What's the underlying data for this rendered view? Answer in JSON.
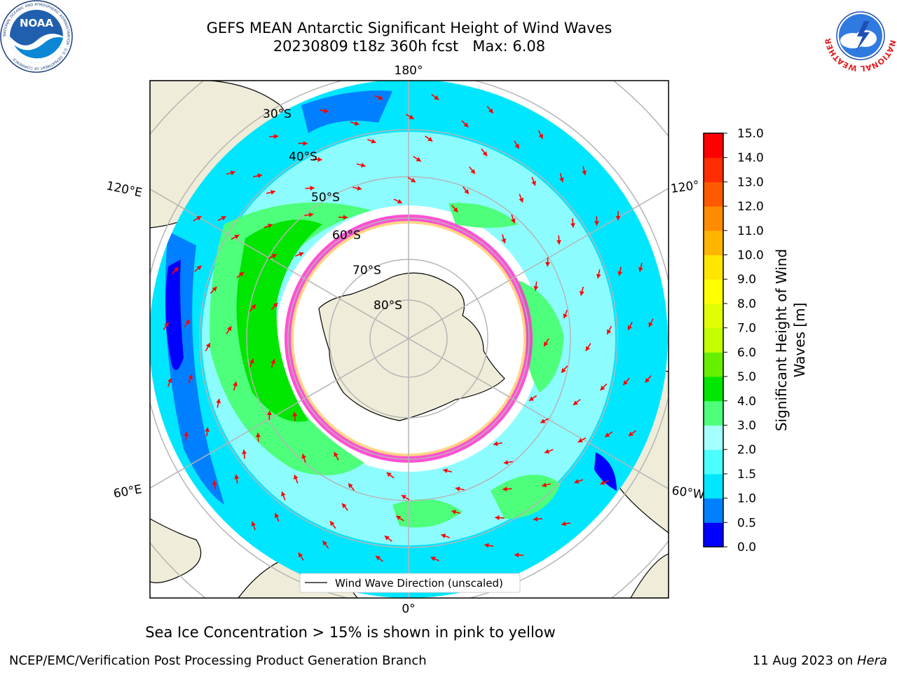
{
  "title": {
    "line1": "GEFS MEAN Antarctic Significant Height of Wind Waves",
    "line2": "20230809 t18z 360h fcst   Max: 6.08"
  },
  "logos": {
    "left": {
      "name": "noaa-logo",
      "text": "NOAA",
      "ring_text": "NATIONAL OCEANIC AND ATMOSPHERIC ADMINISTRATION · U.S. DEPARTMENT OF COMMERCE"
    },
    "right": {
      "name": "nws-logo",
      "ring_text": "NATIONAL WEATHER SERVICE"
    }
  },
  "map": {
    "projection": "south polar stereographic",
    "meridian_labels": {
      "top": "180°",
      "bottom": "0°",
      "upper_left": "120°E",
      "upper_right": "120°",
      "lower_left": "60°E",
      "lower_right": "60°W"
    },
    "latitude_labels": [
      "30°S",
      "40°S",
      "50°S",
      "60°S",
      "70°S",
      "80°S"
    ],
    "legend": "Wind Wave Direction (unscaled)",
    "colors": {
      "land": "#efecd9",
      "ice": "#ffffff",
      "grid": "#b5b5b5",
      "arrow": "#ff0000"
    }
  },
  "colorbar": {
    "title_line1": "Significant Height of Wind",
    "title_line2": "Waves [m]",
    "ticks": [
      "0.0",
      "0.5",
      "1.0",
      "1.5",
      "2.0",
      "3.0",
      "4.0",
      "5.0",
      "6.0",
      "7.0",
      "8.0",
      "9.0",
      "10.0",
      "11.0",
      "12.0",
      "13.0",
      "14.0",
      "15.0"
    ],
    "colors": [
      "#0000ff",
      "#0080ff",
      "#00e6ff",
      "#4cffff",
      "#a6ffff",
      "#4dff7a",
      "#00e600",
      "#66f000",
      "#c4ff00",
      "#e1ff00",
      "#ffff00",
      "#ffe600",
      "#ffb400",
      "#ff8c00",
      "#ff5a00",
      "#ff2d00",
      "#ff0000"
    ]
  },
  "footer": {
    "note": "Sea Ice Concentration > 15% is shown in pink to yellow",
    "left": "NCEP/EMC/Verification Post Processing Product Generation Branch",
    "right_prefix": "11 Aug 2023 on ",
    "right_machine": "Hera"
  }
}
